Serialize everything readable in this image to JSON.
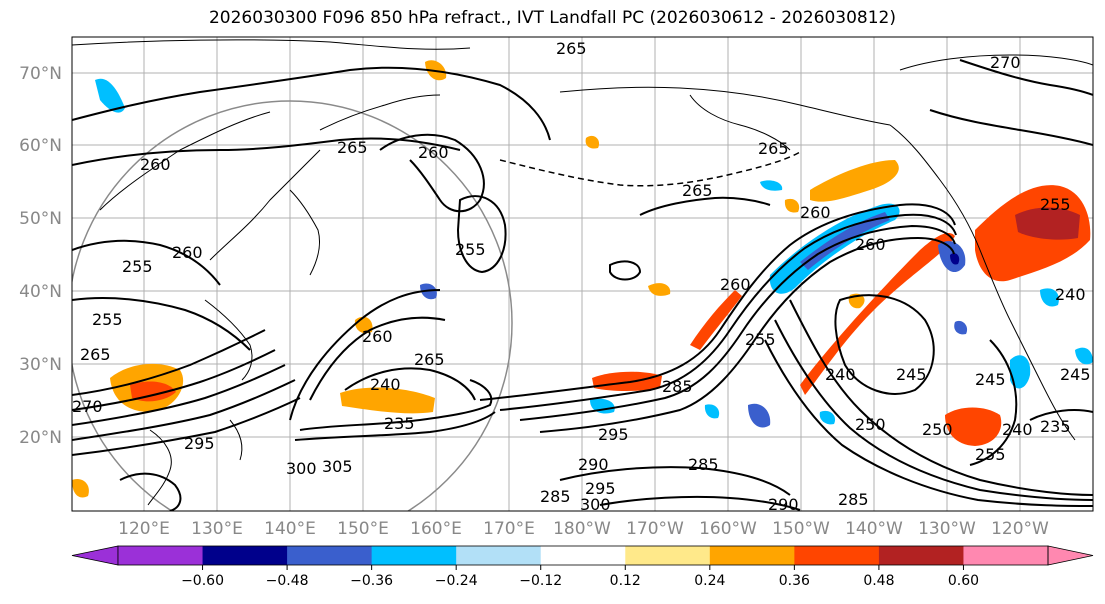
{
  "title": "2026030300 F096 850 hPa refract., IVT Landfall PC (2026030612 - 2026030812)",
  "lat_labels": [
    "70°N",
    "60°N",
    "50°N",
    "40°N",
    "30°N",
    "20°N"
  ],
  "lon_labels": [
    "120°E",
    "130°E",
    "140°E",
    "150°E",
    "160°E",
    "170°E",
    "180°W",
    "170°W",
    "160°W",
    "150°W",
    "140°W",
    "130°W",
    "120°W"
  ],
  "contour_labels": [
    "265",
    "270",
    "260",
    "265",
    "260",
    "265",
    "260",
    "255",
    "265",
    "260",
    "255",
    "255",
    "260",
    "260",
    "265",
    "240",
    "235",
    "295",
    "300",
    "305",
    "270",
    "265",
    "255",
    "260",
    "255",
    "285",
    "295",
    "290",
    "285",
    "300",
    "295",
    "285",
    "290",
    "285",
    "240",
    "245",
    "250",
    "245",
    "240",
    "235",
    "255",
    "250",
    "245",
    "240"
  ],
  "colorbar": {
    "colors": [
      "#9b30d8",
      "#00008b",
      "#3a5fcd",
      "#00bfff",
      "#b2e0f7",
      "#ffffff",
      "#ffe98a",
      "#ffa500",
      "#ff4500",
      "#b22222",
      "#ff88b0"
    ],
    "ticks": [
      "−0.60",
      "−0.48",
      "−0.36",
      "−0.24",
      "−0.12",
      "0.12",
      "0.24",
      "0.36",
      "0.48",
      "0.60"
    ]
  }
}
